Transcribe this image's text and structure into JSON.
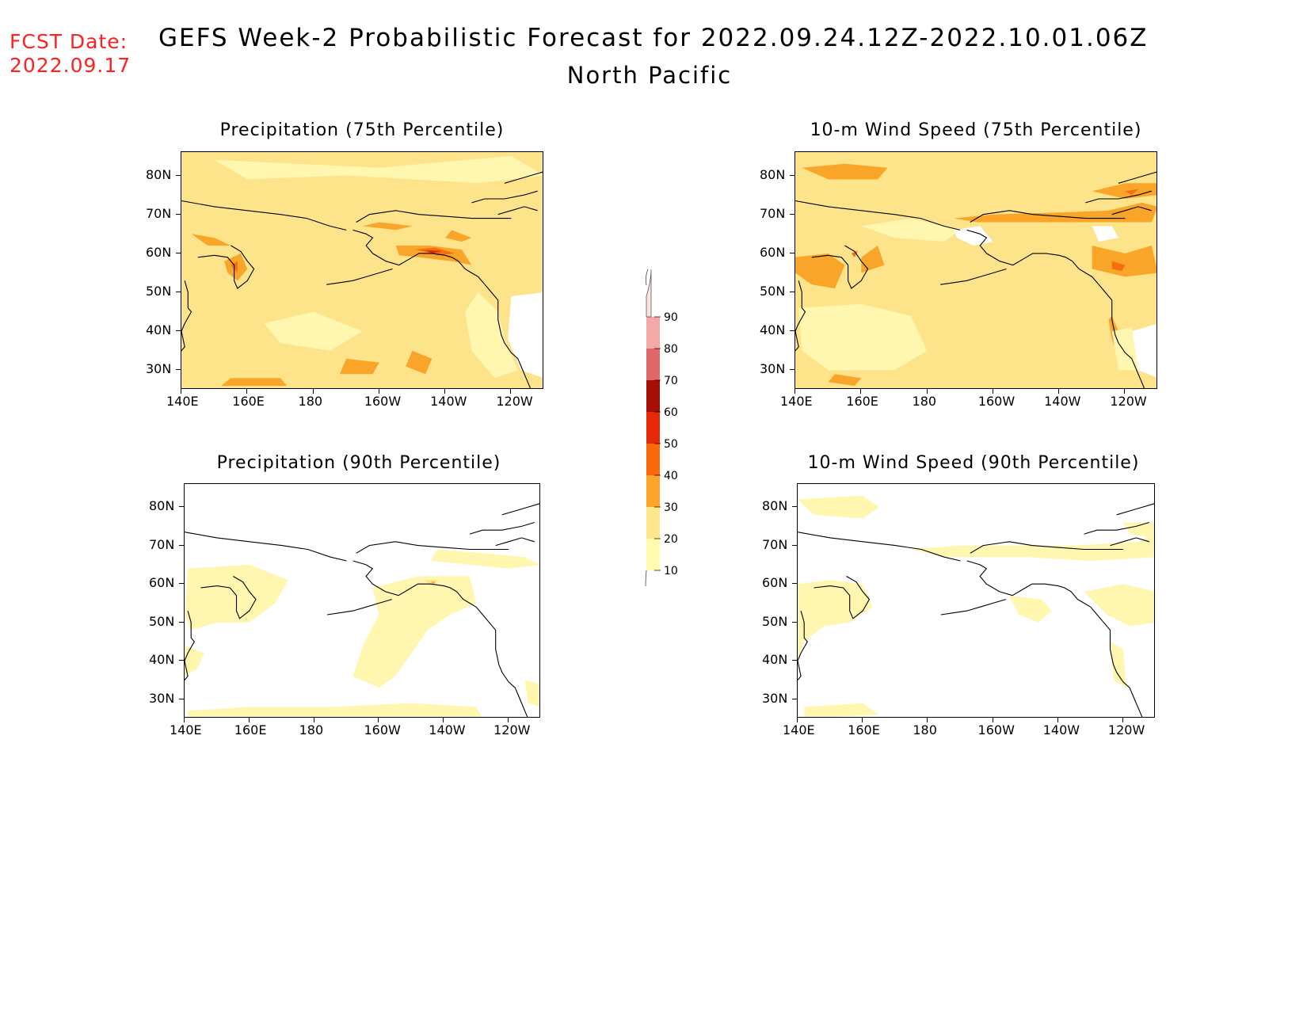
{
  "header": {
    "fcst_date_label": "FCST Date:",
    "fcst_date_value": "2022.09.17",
    "title": "GEFS Week-2 Probabilistic Forecast for 2022.09.24.12Z-2022.10.01.06Z",
    "region": "North Pacific"
  },
  "panels": [
    {
      "id": "precip75",
      "title": "Precipitation (75th Percentile)",
      "variable": "Precipitation",
      "percentile": "75th",
      "dominant_level": "20-30"
    },
    {
      "id": "wind75",
      "title": "10-m Wind Speed (75th Percentile)",
      "variable": "10-m Wind Speed",
      "percentile": "75th",
      "dominant_level": "20-30"
    },
    {
      "id": "precip90",
      "title": "Precipitation (90th Percentile)",
      "variable": "Precipitation",
      "percentile": "90th",
      "dominant_level": "<10"
    },
    {
      "id": "wind90",
      "title": "10-m Wind Speed (90th Percentile)",
      "variable": "10-m Wind Speed",
      "percentile": "90th",
      "dominant_level": "<10"
    }
  ],
  "axes": {
    "lon_labels": [
      "140E",
      "160E",
      "180",
      "160W",
      "140W",
      "120W"
    ],
    "lat_labels": [
      "80N",
      "70N",
      "60N",
      "50N",
      "40N",
      "30N"
    ]
  },
  "colorbar": {
    "levels": [
      "10",
      "20",
      "30",
      "40",
      "50",
      "60",
      "70",
      "80",
      "90"
    ],
    "colors": [
      "#fffcb0",
      "#fde78a",
      "#fca52a",
      "#fb6a0a",
      "#e62a07",
      "#a50f05",
      "#e06868",
      "#f4a8a8",
      "#fde0e0"
    ]
  },
  "map_colors": {
    "land_outline": "#000000",
    "below_10": "#ffffff",
    "level_10_20": "#fff6b0",
    "level_20_30": "#fde38a",
    "level_30_40": "#f8a52a",
    "level_40_50": "#f56e0f",
    "level_50_60": "#dd2a08"
  }
}
